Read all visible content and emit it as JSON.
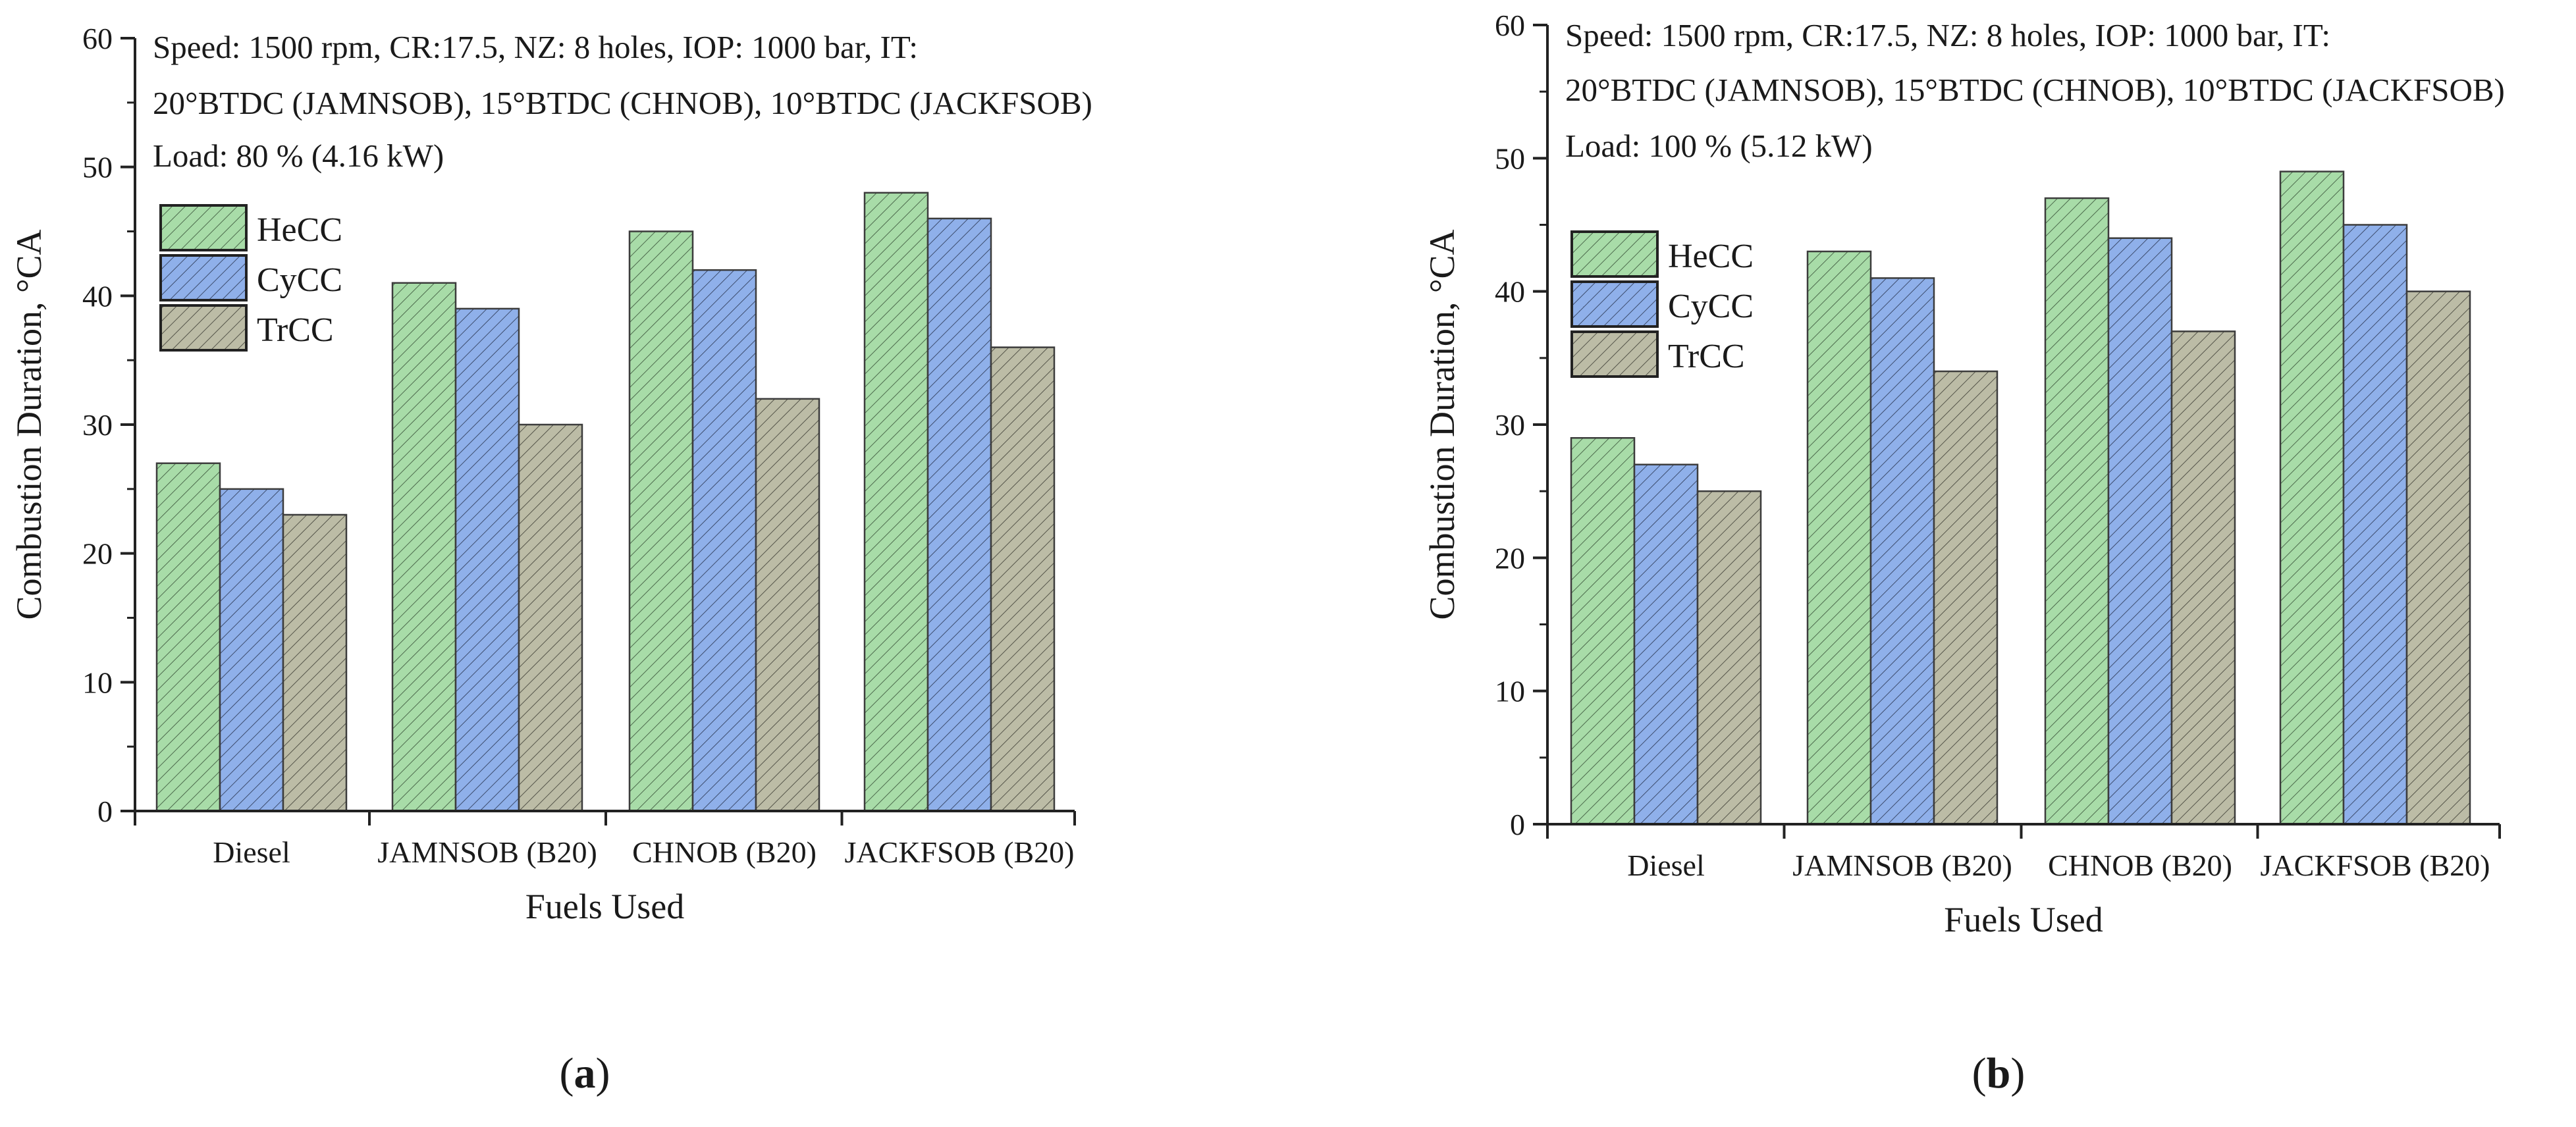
{
  "chart_data": [
    {
      "type": "bar",
      "panel_label": "(a)",
      "panel_letter": "a",
      "categories": [
        "Diesel",
        "JAMNSOB (B20)",
        "CHNOB (B20)",
        "JACKFSOB (B20)"
      ],
      "series": [
        {
          "name": "HeCC",
          "values": [
            27,
            41,
            45,
            48
          ]
        },
        {
          "name": "CyCC",
          "values": [
            25,
            39,
            42,
            46
          ]
        },
        {
          "name": "TrCC",
          "values": [
            23,
            30,
            32,
            36
          ]
        }
      ],
      "xlabel": "Fuels Used",
      "ylabel": "Combustion Duration, °CA",
      "ylim": [
        0,
        60
      ],
      "yticks": [
        0,
        10,
        20,
        30,
        40,
        50,
        60
      ],
      "annotations": [
        "Speed: 1500 rpm, CR:17.5, NZ: 8 holes, IOP: 1000 bar, IT:",
        "20°BTDC (JAMNSOB), 15°BTDC (CHNOB), 10°BTDC (JACKFSOB)",
        "Load:  80 %  (4.16 kW)"
      ],
      "legend": "top-left"
    },
    {
      "type": "bar",
      "panel_label": "(b)",
      "panel_letter": "b",
      "categories": [
        "Diesel",
        "JAMNSOB (B20)",
        "CHNOB (B20)",
        "JACKFSOB (B20)"
      ],
      "series": [
        {
          "name": "HeCC",
          "values": [
            29,
            43,
            47,
            49
          ]
        },
        {
          "name": "CyCC",
          "values": [
            27,
            41,
            44,
            45
          ]
        },
        {
          "name": "TrCC",
          "values": [
            25,
            34,
            37,
            40
          ]
        }
      ],
      "xlabel": "Fuels Used",
      "ylabel": "Combustion Duration, °CA",
      "ylim": [
        0,
        60
      ],
      "yticks": [
        0,
        10,
        20,
        30,
        40,
        50,
        60
      ],
      "annotations": [
        "Speed: 1500 rpm, CR:17.5, NZ: 8 holes, IOP: 1000 bar, IT:",
        "20°BTDC (JAMNSOB), 15°BTDC (CHNOB), 10°BTDC (JACKFSOB)",
        "Load:  100 %  (5.12 kW)"
      ],
      "legend": "top-left"
    }
  ],
  "colors": {
    "HeCC": "#a8dca8",
    "CyCC": "#8fb0ea",
    "TrCC": "#bcbca6",
    "hatch": "#4a4a4a",
    "axis": "#222222"
  }
}
